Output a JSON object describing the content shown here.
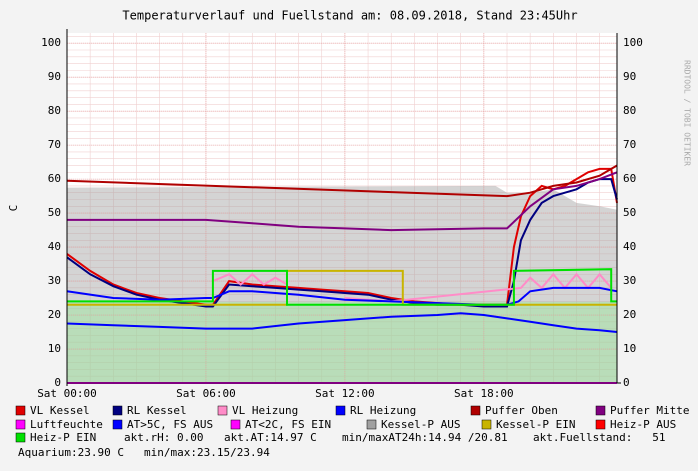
{
  "chart_data": {
    "type": "line",
    "title": "Temperaturverlauf und Fuellstand am: 08.09.2018, Stand 23:45Uhr",
    "y_label": "C",
    "watermark": "RRDTOOL / TOBI OETIKER",
    "xlim": [
      0,
      23.75
    ],
    "xticks": [
      {
        "value": 0,
        "label": "Sat 00:00"
      },
      {
        "value": 6,
        "label": "Sat 06:00"
      },
      {
        "value": 12,
        "label": "Sat 12:00"
      },
      {
        "value": 18,
        "label": "Sat 18:00"
      }
    ],
    "ylim": [
      0,
      103
    ],
    "yticks": [
      0,
      10,
      20,
      30,
      40,
      50,
      60,
      70,
      80,
      90,
      100
    ],
    "grid": true,
    "aquarium_area": {
      "color": "#98e898",
      "x": [
        0,
        23.75
      ],
      "values": [
        23.9,
        23.9
      ]
    },
    "series": [
      {
        "name": "VL Kessel",
        "color": "#e00000",
        "style": "line",
        "x": [
          0,
          1,
          2,
          3,
          4,
          5,
          6,
          6.3,
          7,
          8,
          9,
          10,
          11,
          12,
          13,
          14,
          15,
          16,
          17,
          18,
          19,
          19.3,
          19.6,
          20,
          20.5,
          21,
          21.5,
          22,
          22.5,
          23,
          23.5,
          23.75
        ],
        "values": [
          38,
          33,
          29,
          26.5,
          25,
          24,
          23,
          23,
          30,
          29,
          28.5,
          28,
          27.5,
          27,
          26.5,
          25,
          24,
          23.5,
          23,
          23,
          23,
          40,
          49,
          55,
          58,
          57,
          58,
          60,
          62,
          63,
          63,
          53
        ]
      },
      {
        "name": "RL Kessel",
        "color": "#000080",
        "style": "line",
        "x": [
          0,
          1,
          2,
          3,
          4,
          5,
          6,
          6.3,
          7,
          8,
          9,
          10,
          11,
          12,
          13,
          14,
          15,
          16,
          17,
          18,
          19,
          19.3,
          19.6,
          20,
          20.5,
          21,
          21.5,
          22,
          22.5,
          23,
          23.5,
          23.75
        ],
        "values": [
          37,
          32,
          28.5,
          26,
          24.5,
          23.5,
          22.5,
          22.5,
          29,
          28.5,
          28,
          27.5,
          27,
          26.5,
          26,
          24.5,
          23.5,
          23,
          23,
          22.5,
          22.5,
          30,
          42,
          48,
          53,
          55,
          56,
          57,
          59,
          60,
          60,
          54
        ]
      },
      {
        "name": "VL Heizung",
        "color": "#ff8cc8",
        "style": "line",
        "x": [
          6.3,
          7,
          7.5,
          8,
          8.5,
          9,
          9.5,
          10,
          12,
          13,
          14,
          19.6,
          20,
          20.5,
          21,
          21.5,
          22,
          22.5,
          23,
          23.5
        ],
        "values": [
          30,
          32,
          29,
          32,
          29,
          31,
          29,
          null,
          25,
          24.5,
          24,
          28,
          31,
          28,
          32,
          28,
          32,
          28,
          32,
          28
        ]
      },
      {
        "name": "RL Heizung",
        "color": "#0000ff",
        "style": "line",
        "x": [
          0,
          2,
          4,
          6,
          6.3,
          7,
          8,
          9,
          10,
          12,
          14,
          16,
          18,
          19,
          19.5,
          20,
          21,
          22,
          23,
          23.75
        ],
        "values": [
          27,
          25,
          24.5,
          25,
          25,
          27,
          27,
          26.5,
          26,
          24.5,
          24,
          23.5,
          23,
          23,
          24,
          27,
          28,
          28,
          28,
          27
        ]
      },
      {
        "name": "Puffer Oben",
        "color": "#b00000",
        "style": "line",
        "x": [
          0,
          19,
          20,
          21,
          22,
          23,
          23.5,
          23.75
        ],
        "values": [
          59.5,
          55,
          56,
          58,
          59,
          61,
          63,
          64
        ]
      },
      {
        "name": "Puffer Mitte",
        "color": "#800080",
        "style": "line",
        "x": [
          0,
          6,
          8,
          10,
          12,
          14,
          18,
          19,
          20,
          21,
          22,
          23,
          23.75
        ],
        "values": [
          48,
          48,
          47,
          46,
          45.5,
          45,
          45.5,
          45.5,
          52,
          57,
          58,
          60,
          62
        ]
      },
      {
        "name": "Luftfeuchte",
        "color": "#ff00ff",
        "style": "line",
        "x": [
          0,
          23.75
        ],
        "values": [
          0,
          0
        ]
      },
      {
        "name": "AT>5C, FS AUS",
        "color": "#0000ff",
        "style": "line",
        "x": [
          0,
          2,
          4,
          6,
          8,
          10,
          12,
          14,
          16,
          17,
          18,
          19,
          20,
          21,
          22,
          23,
          23.75
        ],
        "values": [
          17.5,
          17,
          16.5,
          16,
          16,
          17.5,
          18.5,
          19.5,
          20,
          20.5,
          20,
          19,
          18,
          17,
          16,
          15.5,
          15
        ]
      },
      {
        "name": "AT<2C, FS EIN",
        "color": "#ff00ff",
        "style": "line",
        "x": [
          0,
          23.75
        ],
        "values": [
          null,
          null
        ]
      },
      {
        "name": "Kessel-P AUS",
        "color": "#a0a0a0",
        "style": "area",
        "x": [
          0,
          18.5,
          19,
          20,
          21,
          22,
          23,
          23.75
        ],
        "values": [
          57.5,
          58,
          56,
          56,
          57,
          53,
          52,
          51
        ]
      },
      {
        "name": "Kessel-P EIN",
        "color": "#c8b400",
        "style": "line",
        "x": [
          0,
          9.5,
          9.5,
          14.5,
          14.5,
          23.75
        ],
        "values": [
          23,
          23,
          33,
          33,
          23,
          23
        ]
      },
      {
        "name": "Heiz-P AUS",
        "color": "#ff0000",
        "style": "line",
        "x": [
          0,
          23.75
        ],
        "values": [
          null,
          null
        ]
      },
      {
        "name": "Heiz-P EIN",
        "color": "#00e000",
        "style": "line",
        "x": [
          0,
          6.3,
          6.3,
          9.5,
          9.5,
          19.3,
          19.3,
          23.5,
          23.5,
          23.75
        ],
        "values": [
          24,
          24,
          33,
          33,
          23,
          23,
          33,
          33.5,
          24,
          24
        ]
      }
    ],
    "annotations": [
      "akt.rH: 0.00",
      "akt.AT:14.97 C",
      "min/maxAT24h:14.94 /20.81",
      "akt.Fuellstand:   51",
      "Aquarium:23.90 C",
      "min/max:23.15/23.94"
    ]
  }
}
